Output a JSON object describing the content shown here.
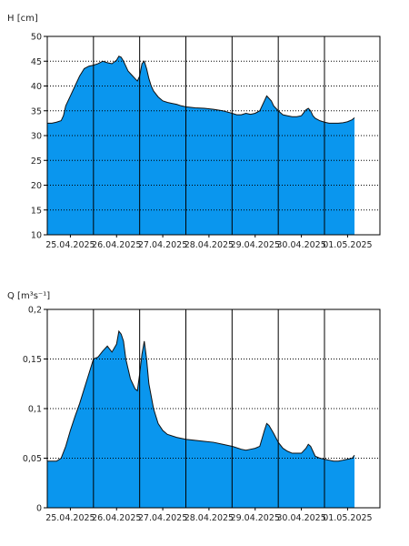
{
  "chart_data": [
    {
      "type": "area",
      "ylabel": "H [cm]",
      "ylim": [
        10,
        50
      ],
      "yticks": [
        10,
        15,
        20,
        25,
        30,
        35,
        40,
        45,
        50
      ],
      "ytick_labels": [
        "10",
        "15",
        "20",
        "25",
        "30",
        "35",
        "40",
        "45",
        "50"
      ],
      "xlim": [
        0,
        7.2
      ],
      "day_boundaries": [
        1,
        2,
        3,
        4,
        5,
        6
      ],
      "date_labels": [
        "25.04.2025",
        "26.04.2025",
        "27.04.2025",
        "28.04.2025",
        "29.04.2025",
        "30.04.2025",
        "01.05.2025"
      ],
      "grid": true,
      "fill_color": "#0a96ee",
      "line_color": "#111111",
      "series": [
        {
          "x": [
            0.0,
            0.1,
            0.2,
            0.3,
            0.35,
            0.4,
            0.5,
            0.6,
            0.7,
            0.8,
            0.9,
            1.0,
            1.1,
            1.2,
            1.3,
            1.4,
            1.5,
            1.55,
            1.6,
            1.65,
            1.7,
            1.75,
            1.8,
            1.85,
            1.9,
            1.95,
            2.0,
            2.05,
            2.1,
            2.15,
            2.2,
            2.25,
            2.3,
            2.4,
            2.5,
            2.6,
            2.7,
            2.8,
            2.9,
            3.0,
            3.2,
            3.4,
            3.6,
            3.8,
            4.0,
            4.1,
            4.2,
            4.3,
            4.4,
            4.5,
            4.6,
            4.7,
            4.75,
            4.8,
            4.85,
            4.9,
            5.0,
            5.1,
            5.2,
            5.3,
            5.4,
            5.5,
            5.6,
            5.65,
            5.7,
            5.75,
            5.8,
            5.9,
            6.0,
            6.1,
            6.2,
            6.3,
            6.4,
            6.5,
            6.6,
            6.65
          ],
          "y": [
            32.5,
            32.5,
            32.7,
            33.0,
            34.0,
            36.0,
            38.0,
            40.0,
            42.0,
            43.5,
            44.0,
            44.2,
            44.5,
            45.0,
            44.7,
            44.5,
            45.2,
            46.0,
            45.8,
            45.0,
            44.0,
            43.0,
            42.5,
            42.0,
            41.5,
            41.0,
            42.0,
            44.5,
            45.0,
            43.5,
            41.5,
            40.0,
            39.0,
            37.8,
            37.0,
            36.7,
            36.5,
            36.3,
            36.0,
            35.8,
            35.6,
            35.5,
            35.3,
            35.0,
            34.5,
            34.2,
            34.2,
            34.5,
            34.3,
            34.5,
            35.0,
            37.0,
            38.0,
            37.5,
            37.0,
            36.0,
            35.0,
            34.2,
            34.0,
            33.8,
            33.8,
            34.0,
            35.2,
            35.5,
            35.0,
            34.0,
            33.5,
            33.0,
            32.7,
            32.5,
            32.5,
            32.5,
            32.6,
            32.8,
            33.2,
            33.6
          ]
        }
      ]
    },
    {
      "type": "area",
      "ylabel": "Q [m³s⁻¹]",
      "ylim": [
        0,
        0.2
      ],
      "yticks": [
        0,
        0.05,
        0.1,
        0.15,
        0.2
      ],
      "ytick_labels": [
        "0",
        "0,05",
        "0,1",
        "0,15",
        "0,2"
      ],
      "xlim": [
        0,
        7.2
      ],
      "day_boundaries": [
        1,
        2,
        3,
        4,
        5,
        6
      ],
      "date_labels": [
        "25.04.2025",
        "26.04.2025",
        "27.04.2025",
        "28.04.2025",
        "29.04.2025",
        "30.04.2025",
        "01.05.2025"
      ],
      "grid": true,
      "fill_color": "#0a96ee",
      "line_color": "#111111",
      "series": [
        {
          "x": [
            0.0,
            0.2,
            0.3,
            0.4,
            0.5,
            0.6,
            0.7,
            0.8,
            0.9,
            1.0,
            1.1,
            1.2,
            1.3,
            1.4,
            1.5,
            1.55,
            1.6,
            1.65,
            1.7,
            1.75,
            1.8,
            1.85,
            1.9,
            1.95,
            2.0,
            2.05,
            2.1,
            2.15,
            2.2,
            2.3,
            2.4,
            2.5,
            2.6,
            2.8,
            3.0,
            3.2,
            3.4,
            3.6,
            3.8,
            4.0,
            4.2,
            4.3,
            4.4,
            4.5,
            4.6,
            4.7,
            4.75,
            4.8,
            4.9,
            5.0,
            5.1,
            5.2,
            5.3,
            5.4,
            5.5,
            5.6,
            5.65,
            5.7,
            5.75,
            5.8,
            5.9,
            6.0,
            6.1,
            6.2,
            6.3,
            6.4,
            6.5,
            6.6,
            6.65
          ],
          "y": [
            0.047,
            0.047,
            0.05,
            0.062,
            0.078,
            0.092,
            0.105,
            0.12,
            0.135,
            0.15,
            0.152,
            0.158,
            0.163,
            0.157,
            0.165,
            0.178,
            0.175,
            0.168,
            0.15,
            0.14,
            0.13,
            0.125,
            0.12,
            0.118,
            0.135,
            0.155,
            0.168,
            0.15,
            0.125,
            0.1,
            0.085,
            0.078,
            0.074,
            0.071,
            0.069,
            0.068,
            0.067,
            0.066,
            0.064,
            0.062,
            0.059,
            0.058,
            0.059,
            0.06,
            0.062,
            0.078,
            0.085,
            0.083,
            0.075,
            0.066,
            0.06,
            0.057,
            0.055,
            0.055,
            0.055,
            0.06,
            0.064,
            0.062,
            0.057,
            0.052,
            0.05,
            0.049,
            0.048,
            0.047,
            0.047,
            0.048,
            0.049,
            0.05,
            0.053
          ]
        }
      ]
    }
  ]
}
